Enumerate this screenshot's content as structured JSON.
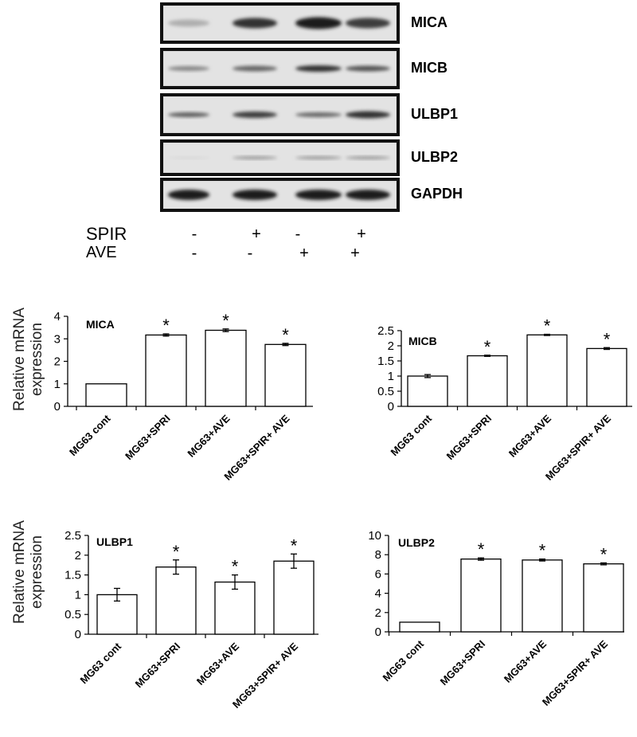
{
  "blot": {
    "bands": [
      "MICA",
      "MICB",
      "ULBP1",
      "ULBP2",
      "GAPDH"
    ],
    "treatments": [
      {
        "name": "SPIR",
        "signs": [
          "-",
          "+",
          "-",
          "+"
        ]
      },
      {
        "name": "AVE",
        "signs": [
          "-",
          "-",
          "+",
          "+"
        ]
      }
    ]
  },
  "ylabel_line1": "Relative mRNA",
  "ylabel_line2": "expression",
  "chart_data": [
    {
      "type": "bar",
      "title": "MICA",
      "categories": [
        "MG63 cont",
        "MG63+SPRI",
        "MG63+AVE",
        "MG63+SPIR+ AVE"
      ],
      "values": [
        1.0,
        3.17,
        3.38,
        2.75
      ],
      "errors": [
        0,
        0.05,
        0.06,
        0.05
      ],
      "significance": [
        "",
        "*",
        "*",
        "*"
      ],
      "ylabel": "Relative mRNA expression",
      "ylim": [
        0,
        4
      ],
      "yticks": [
        "0",
        "1",
        "2",
        "3",
        "4"
      ],
      "grid": false
    },
    {
      "type": "bar",
      "title": "MICB",
      "categories": [
        "MG63 cont",
        "MG63+SPRI",
        "MG63+AVE",
        "MG63+SPIR+ AVE"
      ],
      "values": [
        1.0,
        1.67,
        2.36,
        1.91
      ],
      "errors": [
        0.05,
        0.02,
        0.02,
        0.03
      ],
      "significance": [
        "",
        "*",
        "*",
        "*"
      ],
      "ylabel": "",
      "ylim": [
        0,
        2.5
      ],
      "yticks": [
        "0",
        "0.5",
        "1",
        "1.5",
        "2",
        "2.5"
      ],
      "grid": false
    },
    {
      "type": "bar",
      "title": "ULBP1",
      "categories": [
        "MG63 cont",
        "MG63+SPRI",
        "MG63+AVE",
        "MG63+SPIR+ AVE"
      ],
      "values": [
        1.0,
        1.7,
        1.32,
        1.85
      ],
      "errors": [
        0.16,
        0.18,
        0.18,
        0.18
      ],
      "significance": [
        "",
        "*",
        "*",
        "*"
      ],
      "ylabel": "Relative mRNA expression",
      "ylim": [
        0,
        2.5
      ],
      "yticks": [
        "0",
        "0.5",
        "1",
        "1.5",
        "2",
        "2.5"
      ],
      "grid": false
    },
    {
      "type": "bar",
      "title": "ULBP2",
      "categories": [
        "MG63 cont",
        "MG63+SPRI",
        "MG63+AVE",
        "MG63+SPIR+ AVE"
      ],
      "values": [
        1.0,
        7.55,
        7.45,
        7.05
      ],
      "errors": [
        0,
        0.12,
        0.1,
        0.1
      ],
      "significance": [
        "",
        "*",
        "*",
        "*"
      ],
      "ylabel": "",
      "ylim": [
        0,
        10
      ],
      "yticks": [
        "0",
        "2",
        "4",
        "6",
        "8",
        "10"
      ],
      "grid": false
    }
  ]
}
